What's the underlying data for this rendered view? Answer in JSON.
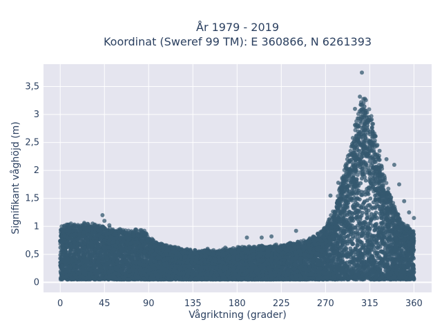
{
  "chart_data": {
    "type": "scatter",
    "title_line1": "År 1979 - 2019",
    "title_line2": "Koordinat (Sweref 99 TM): E 360866, N 6261393",
    "xlabel": "Vågriktning (grader)",
    "ylabel": "Signifikant våghöjd (m)",
    "xlim": [
      -17,
      378
    ],
    "ylim": [
      -0.18,
      3.9
    ],
    "x_ticks": [
      {
        "value": 0,
        "label": "0"
      },
      {
        "value": 45,
        "label": "45"
      },
      {
        "value": 90,
        "label": "90"
      },
      {
        "value": 135,
        "label": "135"
      },
      {
        "value": 180,
        "label": "180"
      },
      {
        "value": 225,
        "label": "225"
      },
      {
        "value": 270,
        "label": "270"
      },
      {
        "value": 315,
        "label": "315"
      },
      {
        "value": 360,
        "label": "360"
      }
    ],
    "y_ticks": [
      {
        "value": 0,
        "label": "0"
      },
      {
        "value": 0.5,
        "label": "0,5"
      },
      {
        "value": 1,
        "label": "1"
      },
      {
        "value": 1.5,
        "label": "1,5"
      },
      {
        "value": 2,
        "label": "2"
      },
      {
        "value": 2.5,
        "label": "2,5"
      },
      {
        "value": 3,
        "label": "3"
      },
      {
        "value": 3.5,
        "label": "3,5"
      }
    ],
    "grid": true,
    "marker_color": "#34586f",
    "plot_bg": "#e5e5ef",
    "envelope": [
      {
        "x": 0,
        "y_max": 0.95
      },
      {
        "x": 10,
        "y_max": 1.0
      },
      {
        "x": 25,
        "y_max": 1.02
      },
      {
        "x": 45,
        "y_max": 0.95
      },
      {
        "x": 65,
        "y_max": 0.9
      },
      {
        "x": 85,
        "y_max": 0.9
      },
      {
        "x": 95,
        "y_max": 0.72
      },
      {
        "x": 110,
        "y_max": 0.62
      },
      {
        "x": 135,
        "y_max": 0.55
      },
      {
        "x": 160,
        "y_max": 0.55
      },
      {
        "x": 180,
        "y_max": 0.6
      },
      {
        "x": 200,
        "y_max": 0.62
      },
      {
        "x": 225,
        "y_max": 0.65
      },
      {
        "x": 245,
        "y_max": 0.7
      },
      {
        "x": 260,
        "y_max": 0.8
      },
      {
        "x": 270,
        "y_max": 0.95
      },
      {
        "x": 280,
        "y_max": 1.3
      },
      {
        "x": 290,
        "y_max": 2.0
      },
      {
        "x": 300,
        "y_max": 2.7
      },
      {
        "x": 308,
        "y_max": 3.2
      },
      {
        "x": 315,
        "y_max": 3.0
      },
      {
        "x": 322,
        "y_max": 2.4
      },
      {
        "x": 330,
        "y_max": 1.8
      },
      {
        "x": 340,
        "y_max": 1.3
      },
      {
        "x": 350,
        "y_max": 1.0
      },
      {
        "x": 360,
        "y_max": 0.9
      }
    ],
    "outliers": [
      {
        "x": 307,
        "y": 3.75
      },
      {
        "x": 305,
        "y": 3.32
      },
      {
        "x": 310,
        "y": 3.28
      },
      {
        "x": 300,
        "y": 3.1
      },
      {
        "x": 312,
        "y": 2.95
      },
      {
        "x": 318,
        "y": 2.7
      },
      {
        "x": 325,
        "y": 2.35
      },
      {
        "x": 332,
        "y": 2.2
      },
      {
        "x": 340,
        "y": 2.1
      },
      {
        "x": 283,
        "y": 1.78
      },
      {
        "x": 275,
        "y": 1.55
      },
      {
        "x": 345,
        "y": 1.75
      },
      {
        "x": 350,
        "y": 1.45
      },
      {
        "x": 355,
        "y": 1.25
      },
      {
        "x": 360,
        "y": 1.15
      },
      {
        "x": 43,
        "y": 1.2
      },
      {
        "x": 45,
        "y": 1.1
      },
      {
        "x": 50,
        "y": 1.02
      },
      {
        "x": 33,
        "y": 1.05
      },
      {
        "x": 10,
        "y": 1.03
      },
      {
        "x": 190,
        "y": 0.8
      },
      {
        "x": 205,
        "y": 0.8
      },
      {
        "x": 215,
        "y": 0.82
      },
      {
        "x": 240,
        "y": 0.92
      },
      {
        "x": 150,
        "y": 0.6
      },
      {
        "x": 168,
        "y": 0.62
      }
    ]
  }
}
